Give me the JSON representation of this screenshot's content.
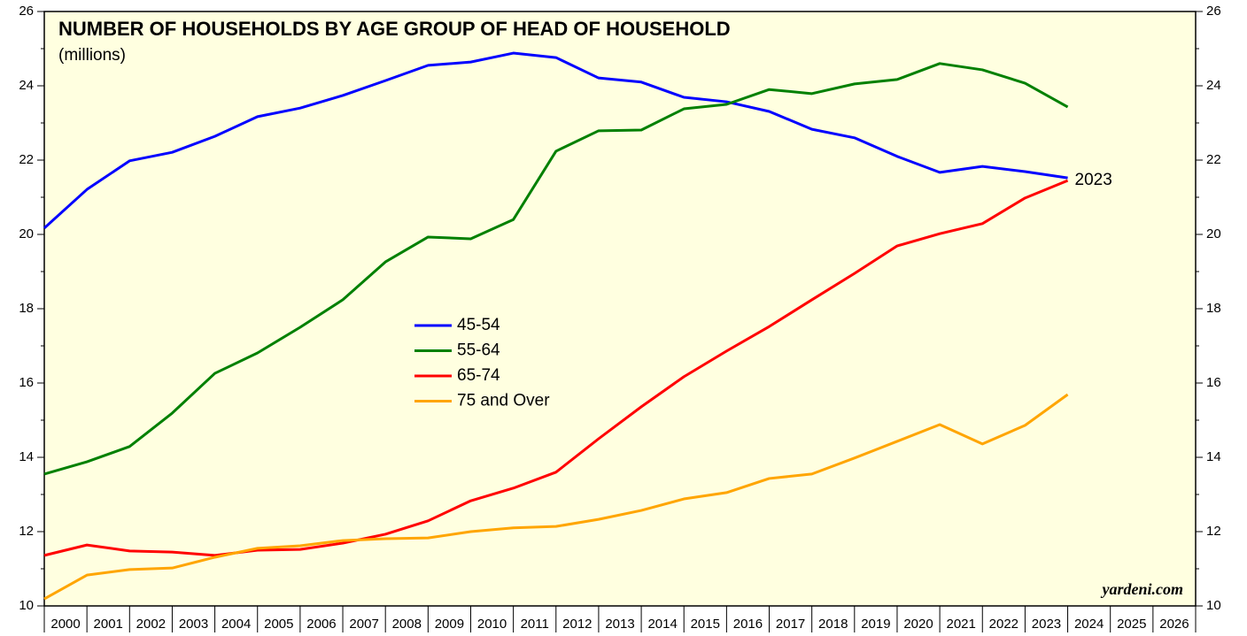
{
  "chart_data": {
    "type": "line",
    "title": "NUMBER OF HOUSEHOLDS BY AGE GROUP OF HEAD OF HOUSEHOLD",
    "subtitle": "(millions)",
    "annotation": "2023",
    "source": "yardeni.com",
    "x": [
      2000,
      2001,
      2002,
      2003,
      2004,
      2005,
      2006,
      2007,
      2008,
      2009,
      2010,
      2011,
      2012,
      2013,
      2014,
      2015,
      2016,
      2017,
      2018,
      2019,
      2020,
      2021,
      2022,
      2023,
      2024
    ],
    "xlim": [
      2000,
      2027
    ],
    "xticks": [
      2000,
      2001,
      2002,
      2003,
      2004,
      2005,
      2006,
      2007,
      2008,
      2009,
      2010,
      2011,
      2012,
      2013,
      2014,
      2015,
      2016,
      2017,
      2018,
      2019,
      2020,
      2021,
      2022,
      2023,
      2024,
      2025,
      2026
    ],
    "ylim": [
      10,
      26
    ],
    "yticks": [
      10,
      12,
      14,
      16,
      18,
      20,
      22,
      24,
      26
    ],
    "yminorticks": [
      11,
      13,
      15,
      17,
      19,
      21,
      23,
      25
    ],
    "series": [
      {
        "name": "45-54",
        "color": "#0000ff",
        "values": [
          20.17,
          21.21,
          21.98,
          22.21,
          22.64,
          23.17,
          23.4,
          23.74,
          24.14,
          24.55,
          24.64,
          24.88,
          24.76,
          24.21,
          24.1,
          23.69,
          23.57,
          23.31,
          22.83,
          22.6,
          22.1,
          21.67,
          21.83,
          21.69,
          21.52
        ]
      },
      {
        "name": "55-64",
        "color": "#008000",
        "values": [
          13.55,
          13.88,
          14.29,
          15.19,
          16.26,
          16.81,
          17.5,
          18.24,
          19.26,
          19.93,
          19.88,
          20.4,
          22.24,
          22.79,
          22.81,
          23.38,
          23.5,
          23.9,
          23.79,
          24.05,
          24.17,
          24.6,
          24.43,
          24.07,
          23.43
        ]
      },
      {
        "name": "65-74",
        "color": "#ff0000",
        "values": [
          11.36,
          11.64,
          11.48,
          11.45,
          11.36,
          11.5,
          11.52,
          11.69,
          11.93,
          12.29,
          12.83,
          13.17,
          13.6,
          14.5,
          15.36,
          16.17,
          16.86,
          17.52,
          18.24,
          18.95,
          19.69,
          20.02,
          20.29,
          20.98,
          21.45
        ]
      },
      {
        "name": "75 and Over",
        "color": "#ffa500",
        "values": [
          10.19,
          10.83,
          10.98,
          11.02,
          11.31,
          11.55,
          11.62,
          11.76,
          11.81,
          11.83,
          12.0,
          12.1,
          12.14,
          12.33,
          12.57,
          12.88,
          13.05,
          13.43,
          13.55,
          13.98,
          14.43,
          14.88,
          14.36,
          14.86,
          15.69
        ]
      }
    ]
  }
}
